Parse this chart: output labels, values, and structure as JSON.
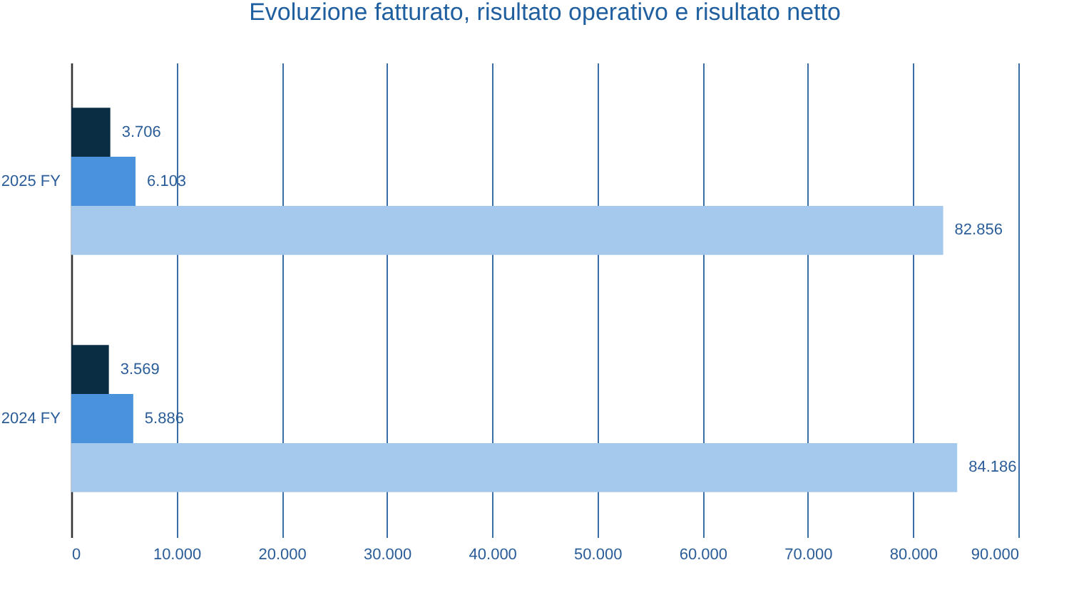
{
  "chart_data": {
    "type": "bar",
    "title": "Evoluzione fatturato, risultato operativo e risultato netto",
    "orientation": "horizontal",
    "categories": [
      "2025 FY",
      "2024 FY"
    ],
    "series": [
      {
        "color": "#0b2d44",
        "values": [
          3706,
          3569
        ],
        "value_labels": [
          "3.706",
          "3.569"
        ]
      },
      {
        "color": "#4a93dc",
        "values": [
          6103,
          5886
        ],
        "value_labels": [
          "6.103",
          "5.886"
        ]
      },
      {
        "color": "#a5c9ed",
        "values": [
          82856,
          84186
        ],
        "value_labels": [
          "82.856",
          "84.186"
        ]
      }
    ],
    "xlim": [
      0,
      90000
    ],
    "xticks": [
      0,
      {
        "value": 10000,
        "label": "10.000"
      },
      {
        "value": 20000,
        "label": "20.000"
      },
      {
        "value": 30000,
        "label": "30.000"
      },
      {
        "value": 40000,
        "label": "40.000"
      },
      {
        "value": 50000,
        "label": "50.000"
      },
      {
        "value": 60000,
        "label": "60.000"
      },
      {
        "value": 70000,
        "label": "70.000"
      },
      {
        "value": 80000,
        "label": "80.000"
      },
      {
        "value": 90000,
        "label": "90.000"
      }
    ],
    "grid": "x",
    "legend": false
  }
}
